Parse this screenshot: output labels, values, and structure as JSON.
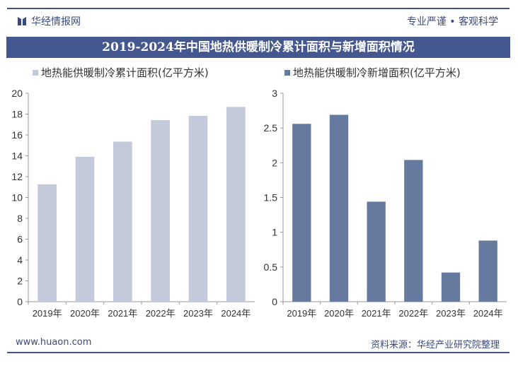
{
  "header": {
    "brand": "华经情报网",
    "slogan": "专业严谨 • 客观科学",
    "title": "2019-2024年中国地热供暖制冷累计面积与新增面积情况"
  },
  "footer": {
    "website": "www.huaon.com",
    "source": "资料来源：华经产业研究院整理"
  },
  "chart_data": [
    {
      "type": "bar",
      "categories": [
        "2019年",
        "2020年",
        "2021年",
        "2022年",
        "2023年",
        "2024年"
      ],
      "series": [
        {
          "name": "地热能供暖制冷累计面积(亿平方米)",
          "values": [
            11.26,
            13.91,
            15.36,
            17.42,
            17.83,
            18.69
          ],
          "color": "#c4cad9"
        }
      ],
      "ylim": [
        0,
        20
      ],
      "yticks": [
        "0",
        "2",
        "4",
        "6",
        "8",
        "10",
        "12",
        "14",
        "16",
        "18",
        "20"
      ],
      "grid": false,
      "legend": "top-left"
    },
    {
      "type": "bar",
      "categories": [
        "2019年",
        "2020年",
        "2021年",
        "2022年",
        "2023年",
        "2024年"
      ],
      "series": [
        {
          "name": "地热能供暖制冷新增面积(亿平方米)",
          "values": [
            2.56,
            2.69,
            1.44,
            2.04,
            0.42,
            0.88
          ],
          "color": "#667aa0"
        }
      ],
      "ylim": [
        0,
        3
      ],
      "yticks": [
        "0",
        "0.5",
        "1",
        "1.5",
        "2",
        "2.5",
        "3"
      ],
      "grid": false,
      "legend": "top-left"
    }
  ]
}
